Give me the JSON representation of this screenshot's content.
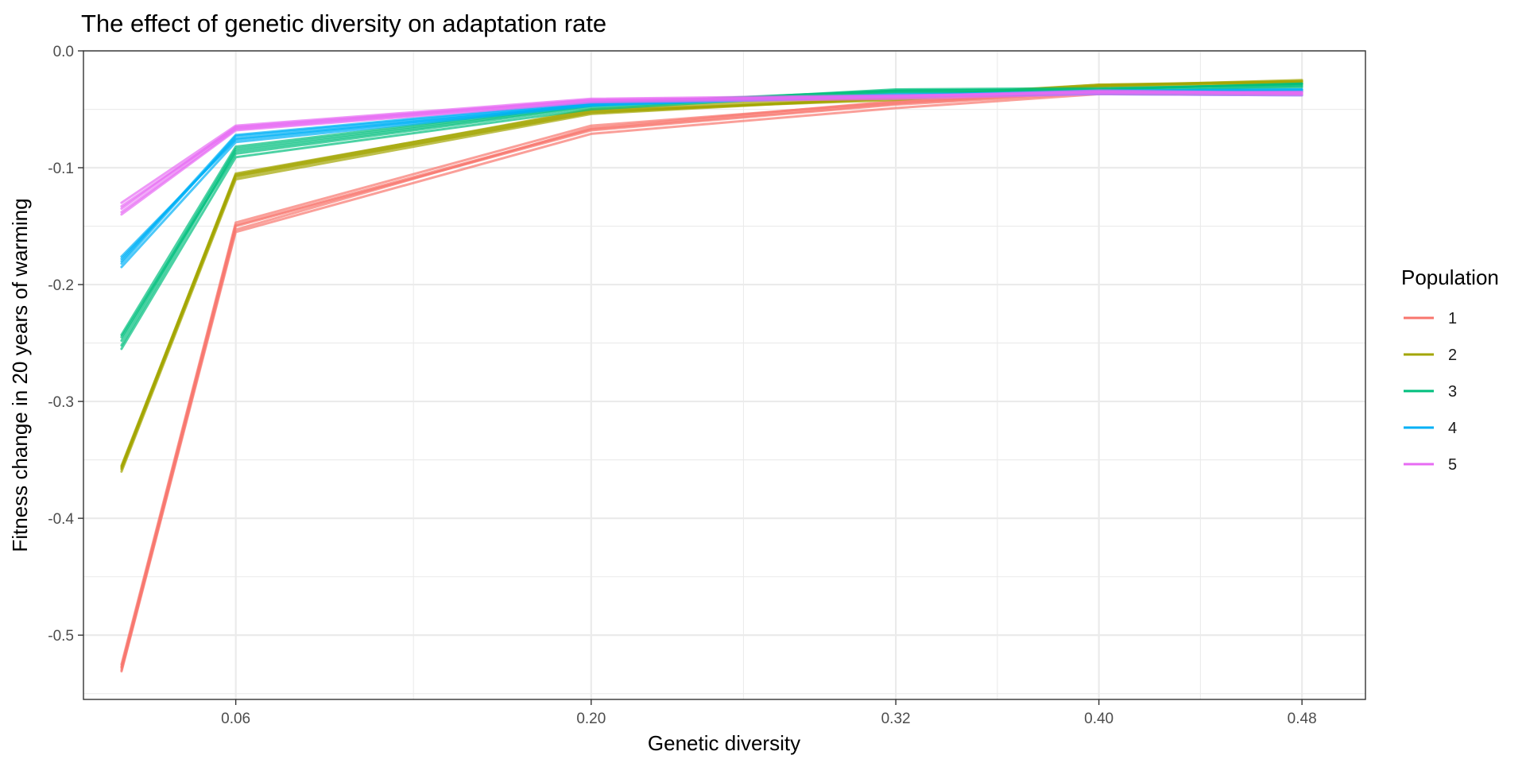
{
  "chart_data": {
    "type": "line",
    "title": "The effect of genetic diversity on adaptation rate",
    "xlabel": "Genetic diversity",
    "ylabel": "Fitness change in 20 years of warming",
    "x": [
      0.015,
      0.06,
      0.2,
      0.32,
      0.4,
      0.48
    ],
    "x_ticks": [
      0.06,
      0.2,
      0.32,
      0.4,
      0.48
    ],
    "x_tick_labels": [
      "0.06",
      "0.20",
      "0.32",
      "0.40",
      "0.48"
    ],
    "y_ticks": [
      0.0,
      -0.1,
      -0.2,
      -0.3,
      -0.4,
      -0.5
    ],
    "y_tick_labels": [
      "0.0",
      "-0.1",
      "-0.2",
      "-0.3",
      "-0.4",
      "-0.5"
    ],
    "xlim": [
      0.0,
      0.505
    ],
    "ylim": [
      -0.555,
      0.0
    ],
    "grid": true,
    "legend": {
      "title": "Population",
      "position": "right"
    },
    "series": [
      {
        "name": "1",
        "color": "#F8766D",
        "replicates": [
          [
            -0.53,
            -0.153,
            -0.066,
            -0.043,
            -0.035,
            -0.034
          ],
          [
            -0.528,
            -0.15,
            -0.068,
            -0.046,
            -0.036,
            -0.035
          ],
          [
            -0.525,
            -0.147,
            -0.064,
            -0.044,
            -0.034,
            -0.036
          ],
          [
            -0.531,
            -0.155,
            -0.071,
            -0.049,
            -0.037,
            -0.037
          ],
          [
            -0.527,
            -0.149,
            -0.067,
            -0.045,
            -0.035,
            -0.034
          ]
        ]
      },
      {
        "name": "2",
        "color": "#A3A500",
        "replicates": [
          [
            -0.358,
            -0.108,
            -0.052,
            -0.041,
            -0.03,
            -0.026
          ],
          [
            -0.355,
            -0.106,
            -0.05,
            -0.039,
            -0.029,
            -0.027
          ],
          [
            -0.36,
            -0.11,
            -0.054,
            -0.04,
            -0.03,
            -0.025
          ],
          [
            -0.356,
            -0.105,
            -0.051,
            -0.042,
            -0.031,
            -0.028
          ],
          [
            -0.357,
            -0.107,
            -0.053,
            -0.04,
            -0.029,
            -0.026
          ]
        ]
      },
      {
        "name": "3",
        "color": "#00BF7D",
        "replicates": [
          [
            -0.248,
            -0.084,
            -0.046,
            -0.034,
            -0.033,
            -0.028
          ],
          [
            -0.245,
            -0.088,
            -0.048,
            -0.036,
            -0.034,
            -0.03
          ],
          [
            -0.252,
            -0.086,
            -0.047,
            -0.033,
            -0.032,
            -0.029
          ],
          [
            -0.255,
            -0.091,
            -0.05,
            -0.035,
            -0.035,
            -0.031
          ],
          [
            -0.243,
            -0.082,
            -0.045,
            -0.034,
            -0.033,
            -0.028
          ]
        ]
      },
      {
        "name": "4",
        "color": "#00B0F6",
        "replicates": [
          [
            -0.182,
            -0.073,
            -0.045,
            -0.038,
            -0.035,
            -0.033
          ],
          [
            -0.178,
            -0.075,
            -0.046,
            -0.039,
            -0.036,
            -0.034
          ],
          [
            -0.185,
            -0.078,
            -0.047,
            -0.037,
            -0.036,
            -0.035
          ],
          [
            -0.18,
            -0.072,
            -0.044,
            -0.038,
            -0.034,
            -0.033
          ],
          [
            -0.176,
            -0.076,
            -0.046,
            -0.039,
            -0.037,
            -0.038
          ]
        ]
      },
      {
        "name": "5",
        "color": "#E76BF3",
        "replicates": [
          [
            -0.135,
            -0.065,
            -0.042,
            -0.039,
            -0.034,
            -0.036
          ],
          [
            -0.138,
            -0.067,
            -0.043,
            -0.04,
            -0.035,
            -0.037
          ],
          [
            -0.13,
            -0.064,
            -0.041,
            -0.038,
            -0.036,
            -0.035
          ],
          [
            -0.14,
            -0.068,
            -0.044,
            -0.041,
            -0.037,
            -0.038
          ],
          [
            -0.133,
            -0.066,
            -0.042,
            -0.039,
            -0.035,
            -0.036
          ]
        ]
      }
    ]
  }
}
